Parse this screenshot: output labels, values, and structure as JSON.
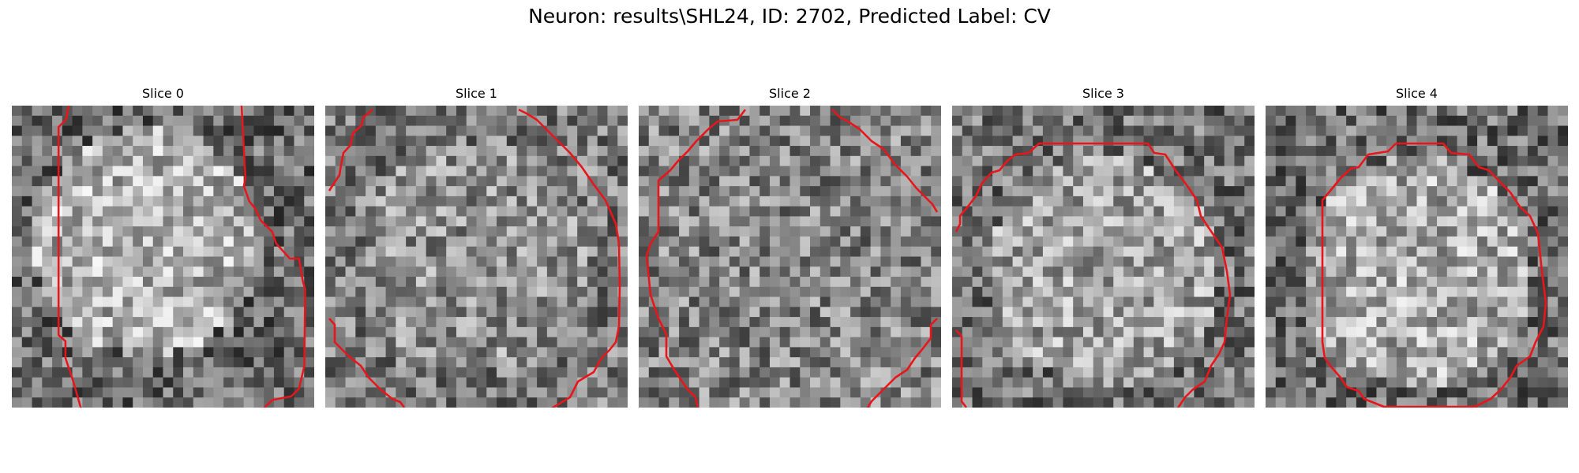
{
  "title": "Neuron: results\\SHL24, ID: 2702, Predicted Label: CV",
  "colors": {
    "contour": "#e8161b",
    "background": "#ffffff"
  },
  "panels": [
    {
      "title": "Slice 0",
      "image": "noisy grayscale microscopy slice with red neuron contour"
    },
    {
      "title": "Slice 1",
      "image": "noisy grayscale microscopy slice with red neuron contour"
    },
    {
      "title": "Slice 2",
      "image": "noisy grayscale microscopy slice with red neuron contour"
    },
    {
      "title": "Slice 3",
      "image": "noisy grayscale microscopy slice with red neuron contour"
    },
    {
      "title": "Slice 4",
      "image": "noisy grayscale microscopy slice with red neuron contour"
    }
  ]
}
